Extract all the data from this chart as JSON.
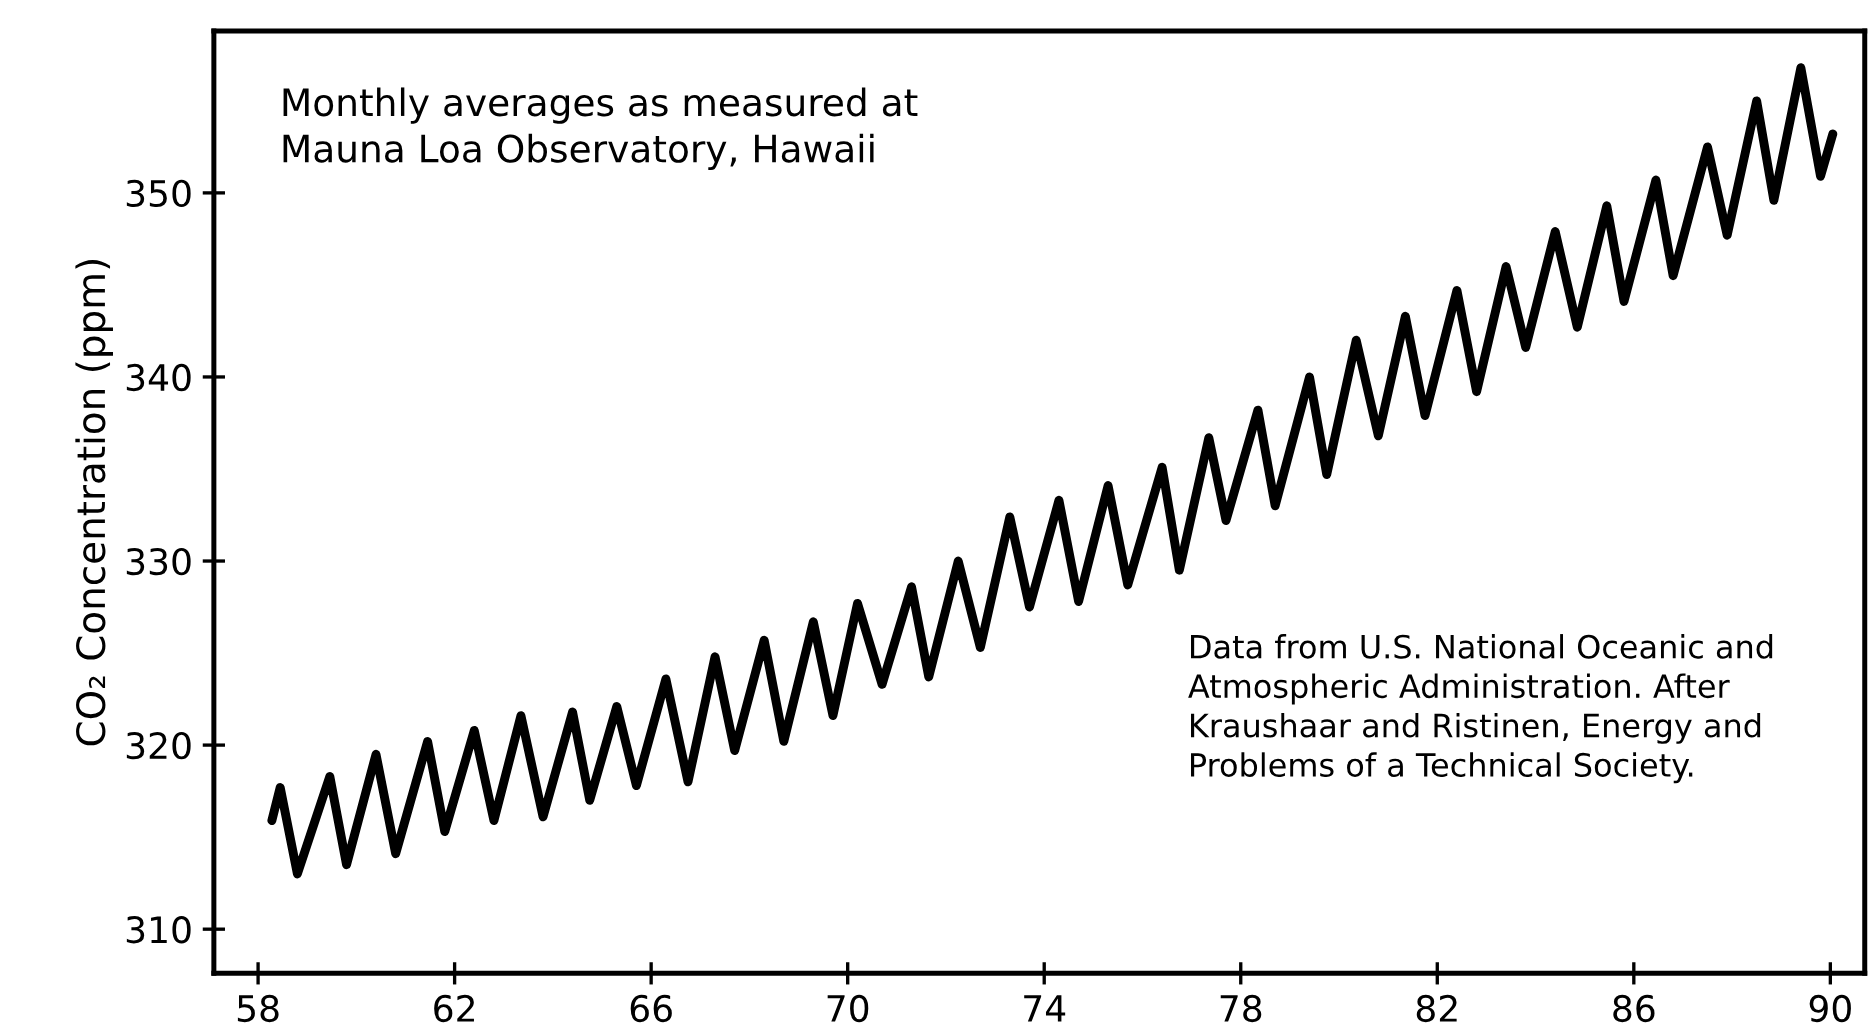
{
  "chart_data": {
    "type": "line",
    "ylabel": "CO₂ Concentration (ppm)",
    "annotations": [
      "Monthly averages as measured at\nMauna Loa Observatory, Hawaii",
      "Data from U.S. National Oceanic and\nAtmospheric Administration. After\nKraushaar and Ristinen, Energy and\nProblems of a Technical Society."
    ],
    "x": [
      58.28,
      58.45,
      58.8,
      59.46,
      59.8,
      60.4,
      60.8,
      61.45,
      61.8,
      62.4,
      62.8,
      63.35,
      63.8,
      64.4,
      64.75,
      65.3,
      65.7,
      66.3,
      66.75,
      67.3,
      67.7,
      68.3,
      68.7,
      69.3,
      69.7,
      70.2,
      70.7,
      71.3,
      71.65,
      72.25,
      72.7,
      73.3,
      73.7,
      74.3,
      74.7,
      75.3,
      75.7,
      76.4,
      76.75,
      77.35,
      77.7,
      78.35,
      78.7,
      79.4,
      79.75,
      80.35,
      80.8,
      81.35,
      81.75,
      82.4,
      82.8,
      83.4,
      83.8,
      84.4,
      84.85,
      85.45,
      85.8,
      86.45,
      86.8,
      87.5,
      87.9,
      88.5,
      88.85,
      89.4,
      89.8,
      90.05
    ],
    "series": [
      {
        "color": "#000000",
        "values": [
          315.9,
          317.7,
          313.0,
          318.3,
          313.5,
          319.5,
          314.1,
          320.2,
          315.3,
          320.8,
          315.9,
          321.6,
          316.1,
          321.8,
          317.0,
          322.1,
          317.8,
          323.6,
          318.0,
          324.8,
          319.7,
          325.7,
          320.2,
          326.7,
          321.6,
          327.7,
          323.3,
          328.6,
          323.7,
          330.0,
          325.3,
          332.4,
          327.5,
          333.3,
          327.8,
          334.1,
          328.7,
          335.1,
          329.5,
          336.7,
          332.2,
          338.2,
          333.0,
          340.0,
          334.7,
          342.0,
          336.8,
          343.3,
          337.9,
          344.7,
          339.2,
          346.0,
          341.6,
          347.9,
          342.7,
          349.3,
          344.1,
          350.7,
          345.5,
          352.5,
          347.7,
          355.0,
          349.6,
          356.8,
          350.9,
          353.2
        ]
      }
    ],
    "xlim": [
      57.1,
      90.7
    ],
    "ylim": [
      307.6,
      358.8
    ],
    "xticks": [
      58,
      62,
      66,
      70,
      74,
      78,
      82,
      86,
      90
    ],
    "yticks": [
      310,
      320,
      330,
      340,
      350
    ],
    "grid": false,
    "marker": "none",
    "line_style": "solid"
  }
}
